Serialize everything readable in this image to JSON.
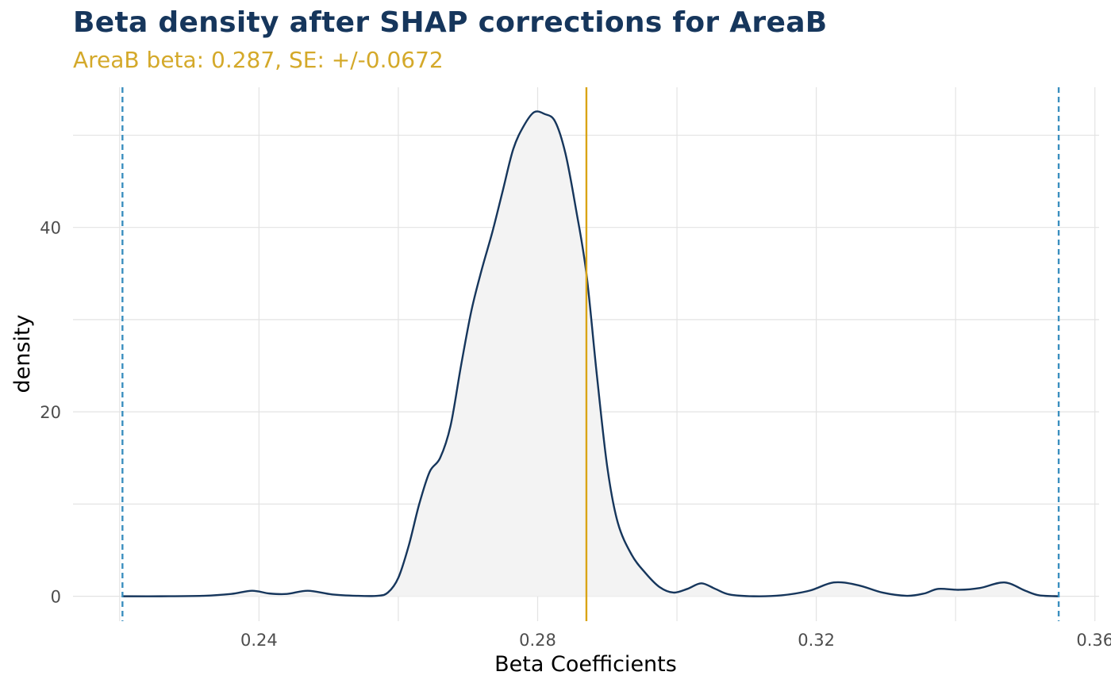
{
  "colors": {
    "title": "#16365c",
    "subtitle": "#d4a92a",
    "density_line": "#16365c",
    "density_fill": "#f3f3f3",
    "estimate_line": "#d9a415",
    "ci_lines": "#3a8fbf",
    "grid": "#e3e3e3",
    "tick_label": "#4d4d4d",
    "axis_title": "#000000"
  },
  "chart_data": {
    "type": "area",
    "title": "Beta density after SHAP corrections for AreaB",
    "subtitle": "AreaB beta: 0.287, SE: +/-0.0672",
    "xlabel": "Beta Coefficients",
    "ylabel": "density",
    "xlim": [
      0.2133,
      0.3606
    ],
    "ylim": [
      -2.7,
      55.2
    ],
    "x_ticks": [
      0.24,
      0.28,
      0.32,
      0.36
    ],
    "x_tick_labels": [
      "0.24",
      "0.28",
      "0.32",
      "0.36"
    ],
    "y_ticks": [
      0,
      20,
      40
    ],
    "y_tick_labels": [
      "0",
      "20",
      "40"
    ],
    "grid": true,
    "legend": "none",
    "vlines": {
      "estimate": 0.287,
      "ci_lower": 0.2204,
      "ci_upper": 0.3548
    },
    "series": [
      {
        "x": [
          0.2204,
          0.226,
          0.232,
          0.236,
          0.239,
          0.2415,
          0.244,
          0.247,
          0.2505,
          0.254,
          0.257,
          0.2585,
          0.26,
          0.2615,
          0.263,
          0.2645,
          0.266,
          0.2675,
          0.269,
          0.2705,
          0.272,
          0.2735,
          0.275,
          0.2765,
          0.278,
          0.2795,
          0.281,
          0.2825,
          0.284,
          0.2855,
          0.287,
          0.2885,
          0.29,
          0.2915,
          0.2935,
          0.2955,
          0.2975,
          0.2995,
          0.3015,
          0.3035,
          0.3055,
          0.3075,
          0.311,
          0.315,
          0.319,
          0.3225,
          0.326,
          0.3295,
          0.333,
          0.3355,
          0.3375,
          0.3405,
          0.3435,
          0.347,
          0.35,
          0.352,
          0.3548
        ],
        "y": [
          0,
          0,
          0.05,
          0.25,
          0.6,
          0.3,
          0.25,
          0.6,
          0.2,
          0.05,
          0.05,
          0.4,
          2,
          5.5,
          10,
          13.5,
          15,
          18.5,
          25,
          31,
          35.5,
          39.5,
          44,
          48.5,
          51,
          52.5,
          52.3,
          51.5,
          48,
          42,
          35,
          24,
          14,
          8,
          4.5,
          2.5,
          1,
          0.4,
          0.8,
          1.4,
          0.8,
          0.2,
          0,
          0.1,
          0.6,
          1.5,
          1.2,
          0.4,
          0.05,
          0.3,
          0.8,
          0.7,
          0.9,
          1.5,
          0.6,
          0.1,
          0
        ]
      }
    ]
  }
}
